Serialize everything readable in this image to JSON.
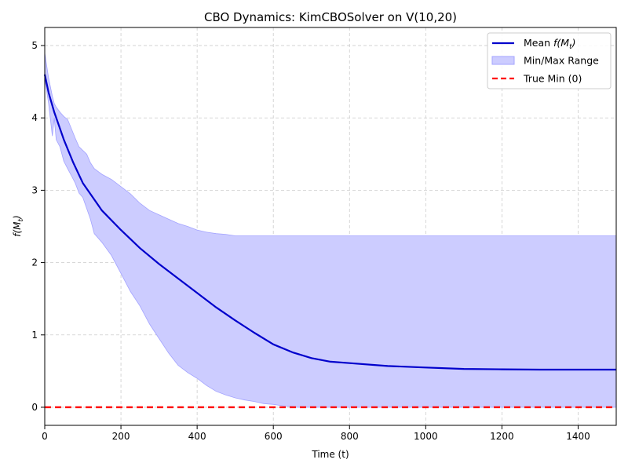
{
  "chart_data": {
    "type": "line",
    "title": "CBO Dynamics: KimCBOSolver on V(10,20)",
    "xlabel": "Time (t)",
    "ylabel": "f(M_t)",
    "ylabel_main": "f(M",
    "ylabel_sub": "t",
    "ylabel_close": ")",
    "xlim": [
      0,
      1500
    ],
    "ylim": [
      -0.25,
      5.25
    ],
    "xticks": [
      0,
      200,
      400,
      600,
      800,
      1000,
      1200,
      1400
    ],
    "yticks": [
      0,
      1,
      2,
      3,
      4,
      5
    ],
    "grid": true,
    "legend_position": "top-right",
    "legend": {
      "mean": {
        "prefix": "Mean ",
        "main": "f(M",
        "sub": "t",
        "close": ")"
      },
      "range": "Min/Max Range",
      "truemin": "True Min (0)"
    },
    "colors": {
      "mean": "#0000cc",
      "range_fill": "#ccccff",
      "range_edge": "#a3a3ff",
      "truemin": "#ff0000",
      "grid": "#cccccc"
    },
    "series": [
      {
        "name": "Mean f(M_t)",
        "kind": "line",
        "x": [
          0,
          10,
          25,
          50,
          75,
          100,
          150,
          200,
          250,
          300,
          350,
          400,
          450,
          500,
          550,
          600,
          650,
          700,
          750,
          800,
          900,
          1000,
          1100,
          1200,
          1300,
          1400,
          1500
        ],
        "y": [
          4.6,
          4.35,
          4.08,
          3.7,
          3.38,
          3.1,
          2.72,
          2.45,
          2.2,
          1.98,
          1.78,
          1.58,
          1.38,
          1.2,
          1.03,
          0.87,
          0.76,
          0.68,
          0.63,
          0.61,
          0.57,
          0.55,
          0.53,
          0.525,
          0.52,
          0.52,
          0.52
        ]
      },
      {
        "name": "Min/Max Range",
        "kind": "band",
        "x": [
          0,
          10,
          20,
          25,
          30,
          40,
          50,
          60,
          70,
          80,
          90,
          100,
          110,
          120,
          130,
          150,
          175,
          200,
          225,
          250,
          275,
          300,
          325,
          350,
          375,
          400,
          425,
          450,
          475,
          500,
          525,
          550,
          575,
          600,
          625,
          650,
          660,
          700,
          800,
          1000,
          1200,
          1400,
          1500
        ],
        "upper": [
          4.9,
          4.55,
          4.3,
          4.2,
          4.15,
          4.08,
          4.02,
          3.98,
          3.85,
          3.72,
          3.6,
          3.55,
          3.5,
          3.38,
          3.3,
          3.22,
          3.15,
          3.05,
          2.95,
          2.82,
          2.72,
          2.66,
          2.6,
          2.54,
          2.5,
          2.45,
          2.42,
          2.4,
          2.39,
          2.37,
          2.37,
          2.37,
          2.37,
          2.37,
          2.37,
          2.37,
          2.37,
          2.37,
          2.37,
          2.37,
          2.37,
          2.37,
          2.37
        ],
        "lower": [
          4.55,
          4.2,
          3.75,
          4.0,
          3.7,
          3.6,
          3.4,
          3.3,
          3.2,
          3.1,
          2.96,
          2.9,
          2.75,
          2.6,
          2.4,
          2.28,
          2.1,
          1.85,
          1.6,
          1.4,
          1.15,
          0.95,
          0.75,
          0.58,
          0.48,
          0.4,
          0.3,
          0.22,
          0.17,
          0.13,
          0.1,
          0.08,
          0.05,
          0.04,
          0.02,
          0.01,
          0.0,
          0.0,
          0.0,
          0.0,
          0.0,
          0.0,
          0.0
        ]
      },
      {
        "name": "True Min (0)",
        "kind": "hline",
        "y": 0
      }
    ]
  }
}
